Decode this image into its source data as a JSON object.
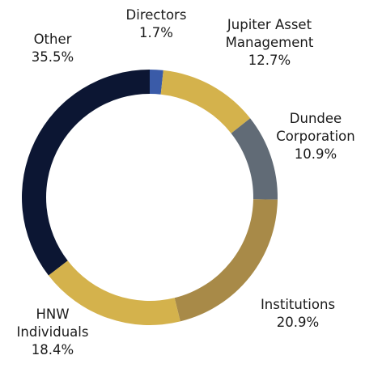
{
  "chart_data": {
    "type": "donut",
    "categories": [
      "Directors",
      "Jupiter Asset Management",
      "Dundee Corporation",
      "Institutions",
      "HNW Individuals",
      "Other"
    ],
    "values": [
      1.7,
      12.7,
      10.9,
      20.9,
      18.4,
      35.5
    ],
    "value_labels": [
      "1.7%",
      "12.7%",
      "10.9%",
      "20.9%",
      "18.4%",
      "35.5%"
    ],
    "colors": [
      "#3a5ba8",
      "#d4b24c",
      "#616b76",
      "#a88a48",
      "#d4b24c",
      "#0c1633"
    ]
  }
}
